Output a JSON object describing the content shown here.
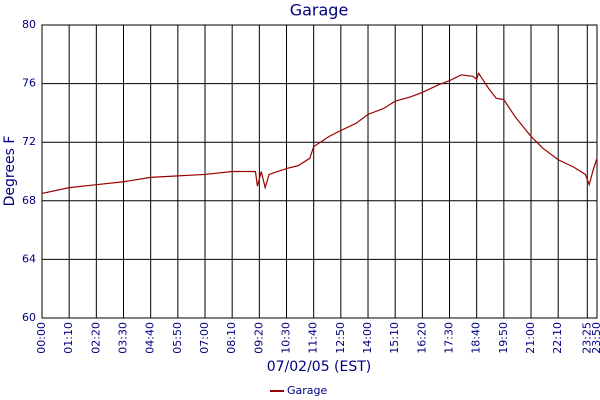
{
  "chart_data": {
    "type": "line",
    "title": "Garage",
    "xlabel": "07/02/05 (EST)",
    "ylabel": "Degrees F",
    "x": [
      0,
      70,
      140,
      210,
      280,
      350,
      420,
      490,
      550,
      555,
      565,
      575,
      585,
      630,
      660,
      690,
      700,
      740,
      770,
      810,
      840,
      880,
      910,
      950,
      980,
      1020,
      1050,
      1080,
      1110,
      1120,
      1125,
      1150,
      1170,
      1190,
      1220,
      1260,
      1290,
      1330,
      1370,
      1400,
      1410,
      1420,
      1430
    ],
    "series": [
      {
        "name": "Garage",
        "color": "#990000",
        "values": [
          68.5,
          68.9,
          69.1,
          69.3,
          69.6,
          69.7,
          69.8,
          70.0,
          70.0,
          69.0,
          70.0,
          68.9,
          69.8,
          70.2,
          70.4,
          70.9,
          71.7,
          72.4,
          72.8,
          73.3,
          73.9,
          74.3,
          74.8,
          75.1,
          75.4,
          75.9,
          76.2,
          76.6,
          76.5,
          76.3,
          76.7,
          75.7,
          75.0,
          74.9,
          73.7,
          72.4,
          71.6,
          70.8,
          70.3,
          69.8,
          69.1,
          70.1,
          70.9
        ]
      }
    ],
    "xlim": [
      0,
      1430
    ],
    "xticks": [
      {
        "value": 0,
        "label": "00:00"
      },
      {
        "value": 70,
        "label": "01:10"
      },
      {
        "value": 140,
        "label": "02:20"
      },
      {
        "value": 210,
        "label": "03:30"
      },
      {
        "value": 280,
        "label": "04:40"
      },
      {
        "value": 350,
        "label": "05:50"
      },
      {
        "value": 420,
        "label": "07:00"
      },
      {
        "value": 490,
        "label": "08:10"
      },
      {
        "value": 560,
        "label": "09:20"
      },
      {
        "value": 630,
        "label": "10:30"
      },
      {
        "value": 700,
        "label": "11:40"
      },
      {
        "value": 770,
        "label": "12:50"
      },
      {
        "value": 840,
        "label": "14:00"
      },
      {
        "value": 910,
        "label": "15:10"
      },
      {
        "value": 980,
        "label": "16:20"
      },
      {
        "value": 1050,
        "label": "17:30"
      },
      {
        "value": 1120,
        "label": "18:40"
      },
      {
        "value": 1190,
        "label": "19:50"
      },
      {
        "value": 1260,
        "label": "21:00"
      },
      {
        "value": 1330,
        "label": "22:10"
      },
      {
        "value": 1405,
        "label": "23:25"
      },
      {
        "value": 1430,
        "label": "23:50"
      }
    ],
    "ylim": [
      60,
      80
    ],
    "yticks": [
      60,
      64,
      68,
      72,
      76,
      80
    ],
    "grid": true,
    "legend": "bottom"
  }
}
